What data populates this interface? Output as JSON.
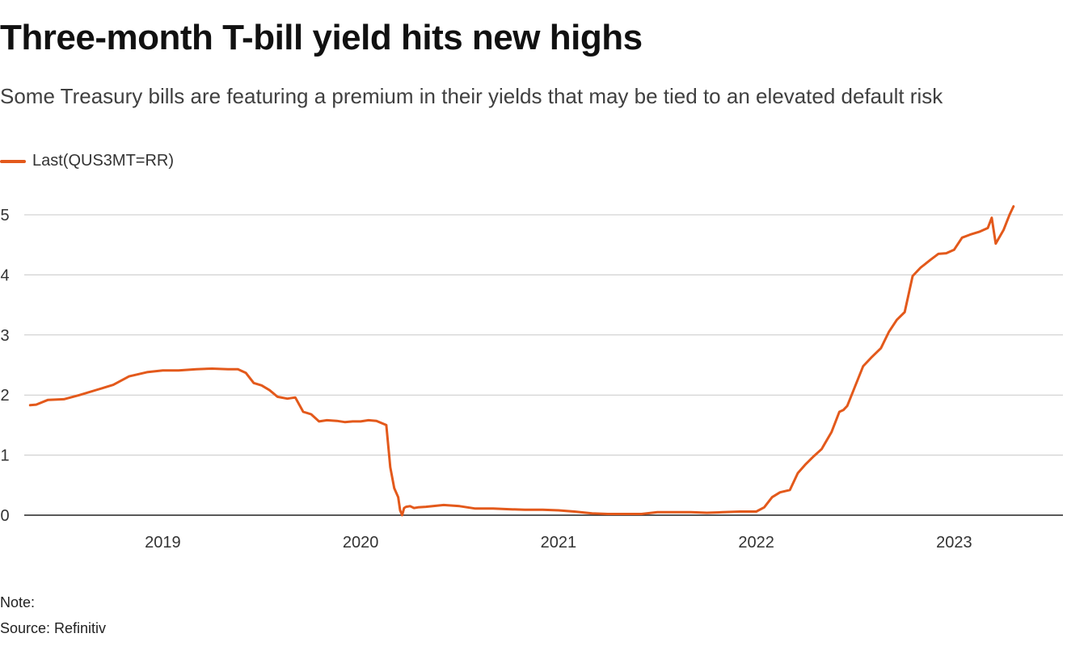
{
  "chart_data": {
    "type": "line",
    "title": "Three-month T-bill yield hits new highs",
    "subtitle": "Some Treasury bills are featuring a premium in their yields that may be tied to an elevated default risk",
    "xlabel": "",
    "ylabel": "",
    "xlim": [
      2018.3,
      2023.55
    ],
    "ylim": [
      0,
      5.3
    ],
    "yticks": [
      "0",
      "1",
      "2",
      "3",
      "4",
      "5"
    ],
    "ytick_values": [
      0,
      1,
      2,
      3,
      4,
      5
    ],
    "xticks": [
      "2019",
      "2020",
      "2021",
      "2022",
      "2023"
    ],
    "xtick_values": [
      2019,
      2020,
      2021,
      2022,
      2023
    ],
    "grid": true,
    "legend_position": "top-left",
    "series": [
      {
        "name": "Last(QUS3MT=RR)",
        "color": "#e3591b",
        "x": [
          2018.33,
          2018.36,
          2018.42,
          2018.5,
          2018.58,
          2018.67,
          2018.75,
          2018.83,
          2018.92,
          2019.0,
          2019.08,
          2019.17,
          2019.25,
          2019.33,
          2019.38,
          2019.42,
          2019.46,
          2019.5,
          2019.54,
          2019.58,
          2019.63,
          2019.67,
          2019.71,
          2019.75,
          2019.79,
          2019.83,
          2019.88,
          2019.92,
          2019.96,
          2020.0,
          2020.04,
          2020.08,
          2020.13,
          2020.15,
          2020.17,
          2020.19,
          2020.2,
          2020.21,
          2020.22,
          2020.23,
          2020.25,
          2020.27,
          2020.29,
          2020.33,
          2020.42,
          2020.5,
          2020.58,
          2020.67,
          2020.75,
          2020.83,
          2020.92,
          2021.0,
          2021.08,
          2021.17,
          2021.25,
          2021.33,
          2021.42,
          2021.5,
          2021.58,
          2021.67,
          2021.75,
          2021.83,
          2021.92,
          2022.0,
          2022.04,
          2022.08,
          2022.12,
          2022.17,
          2022.21,
          2022.25,
          2022.29,
          2022.33,
          2022.38,
          2022.42,
          2022.44,
          2022.46,
          2022.5,
          2022.54,
          2022.58,
          2022.63,
          2022.67,
          2022.71,
          2022.75,
          2022.79,
          2022.83,
          2022.88,
          2022.92,
          2022.96,
          2023.0,
          2023.04,
          2023.08,
          2023.13,
          2023.17,
          2023.19,
          2023.21,
          2023.25,
          2023.28,
          2023.3
        ],
        "values": [
          1.83,
          1.84,
          1.92,
          1.93,
          2.0,
          2.09,
          2.17,
          2.31,
          2.38,
          2.41,
          2.41,
          2.43,
          2.44,
          2.43,
          2.43,
          2.37,
          2.2,
          2.16,
          2.08,
          1.97,
          1.94,
          1.96,
          1.72,
          1.68,
          1.56,
          1.58,
          1.57,
          1.55,
          1.56,
          1.56,
          1.58,
          1.57,
          1.5,
          0.8,
          0.45,
          0.3,
          0.08,
          0.0,
          0.12,
          0.14,
          0.15,
          0.12,
          0.13,
          0.14,
          0.17,
          0.15,
          0.11,
          0.11,
          0.1,
          0.09,
          0.09,
          0.08,
          0.06,
          0.03,
          0.02,
          0.02,
          0.02,
          0.05,
          0.05,
          0.05,
          0.04,
          0.05,
          0.06,
          0.06,
          0.13,
          0.3,
          0.38,
          0.42,
          0.7,
          0.85,
          0.98,
          1.1,
          1.38,
          1.72,
          1.75,
          1.82,
          2.15,
          2.48,
          2.62,
          2.78,
          3.05,
          3.25,
          3.38,
          3.98,
          4.12,
          4.25,
          4.35,
          4.36,
          4.42,
          4.62,
          4.67,
          4.72,
          4.78,
          4.95,
          4.52,
          4.75,
          5.0,
          5.14
        ]
      }
    ]
  },
  "footer": {
    "note": "Note:",
    "source": "Source: Refinitiv"
  }
}
